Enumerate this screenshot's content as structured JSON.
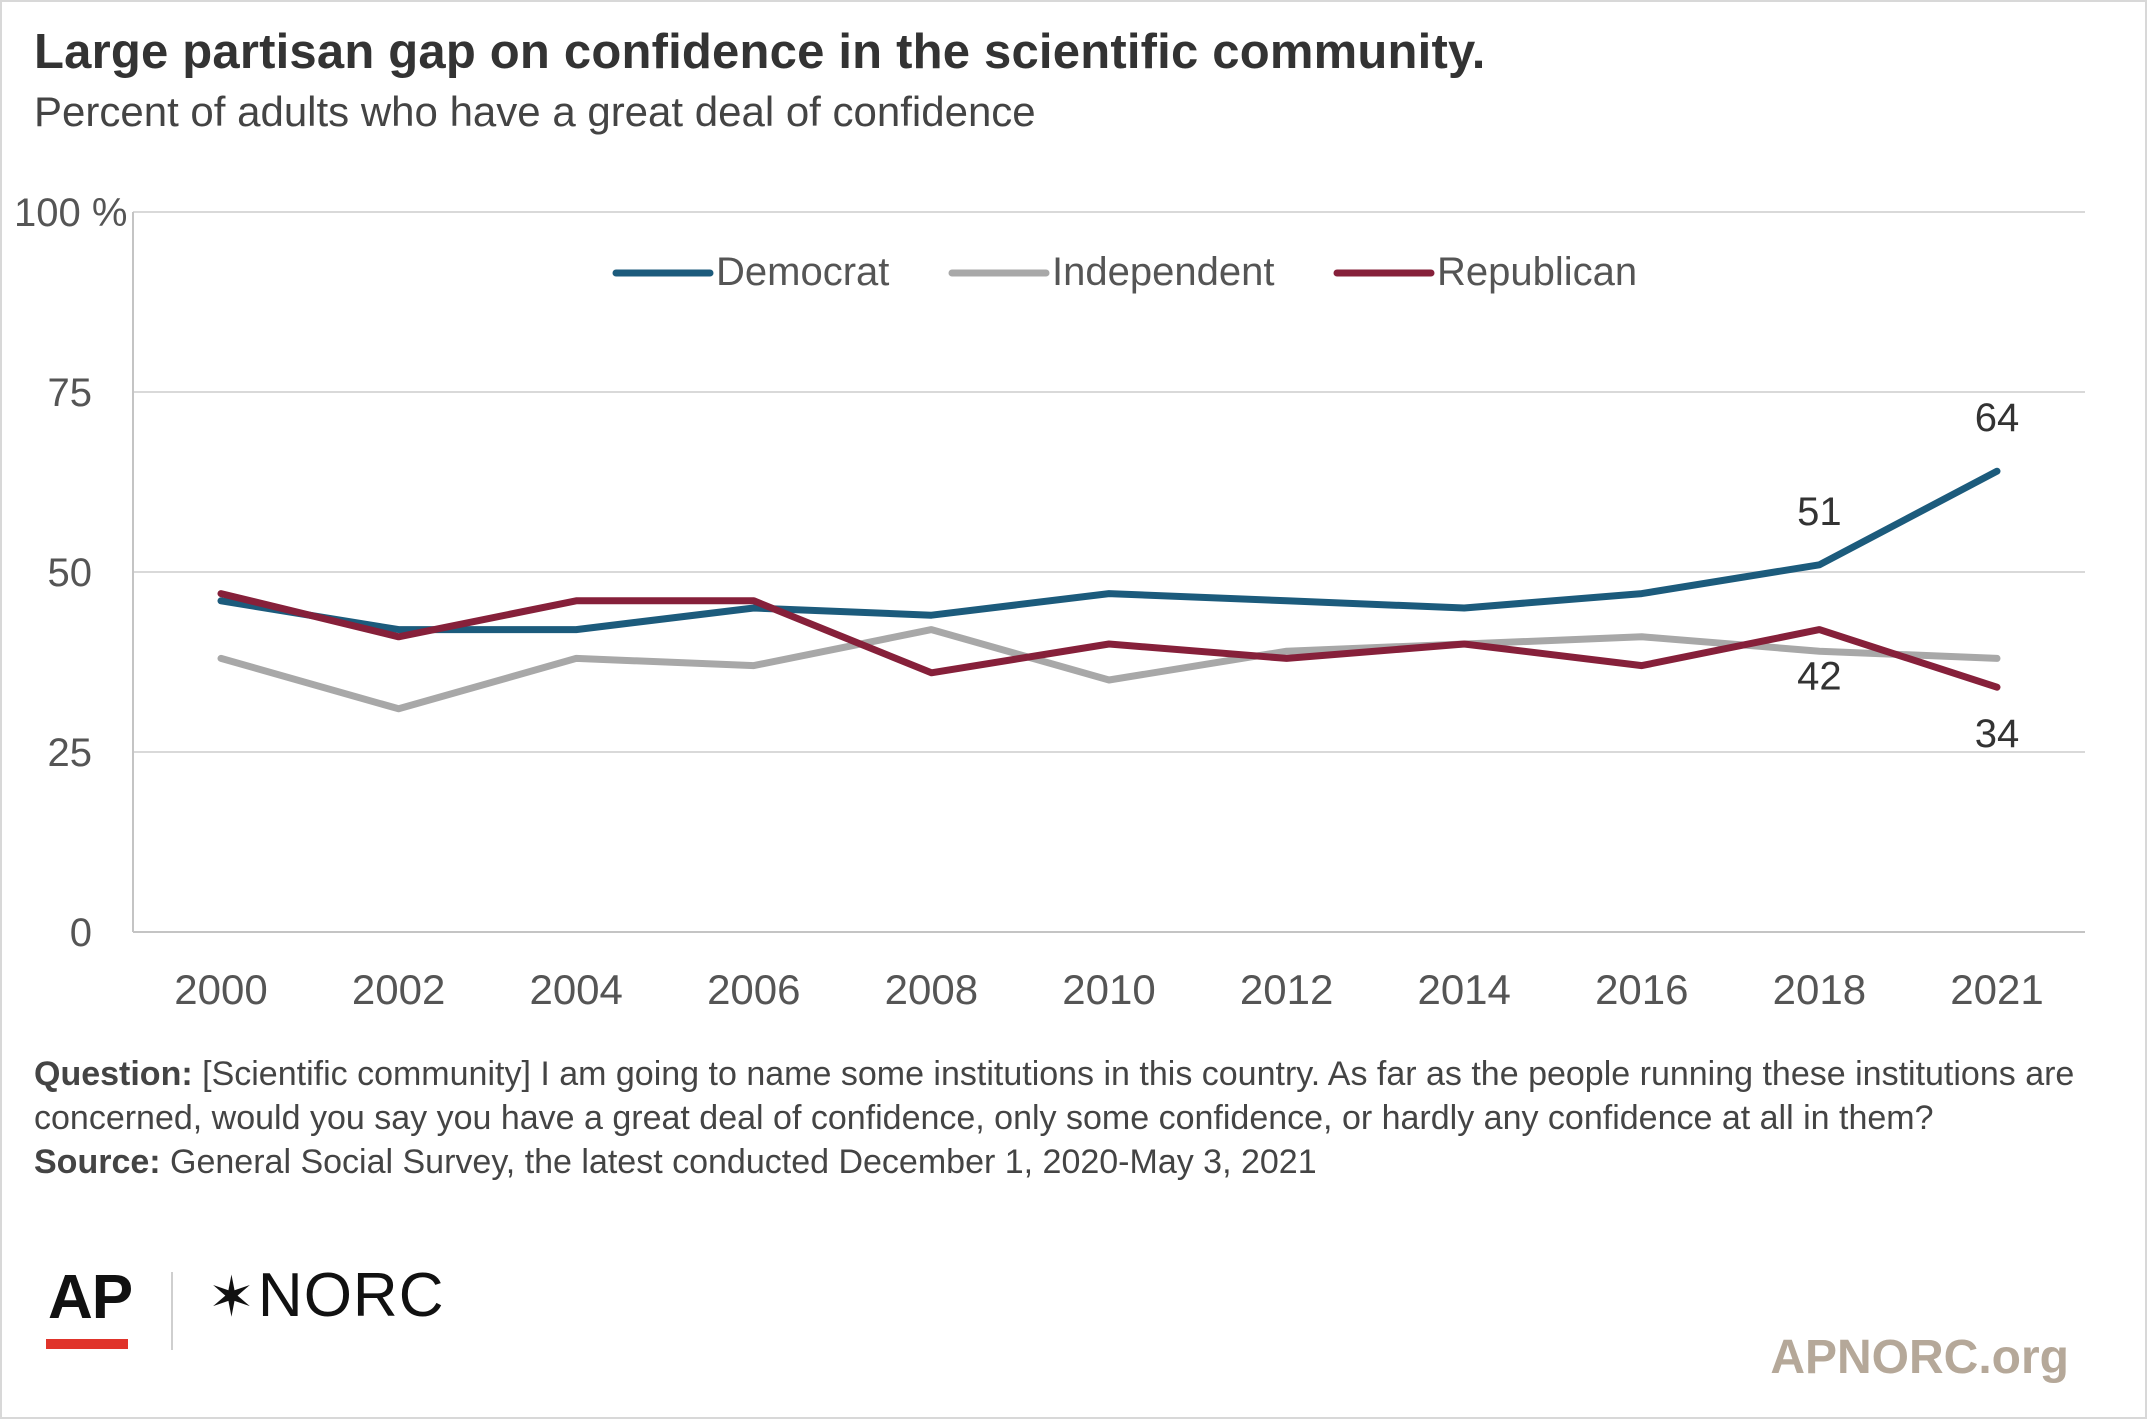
{
  "header": {
    "title": "Large partisan gap on confidence in the scientific community.",
    "subtitle": "Percent of adults who have a great deal of confidence"
  },
  "chart_data": {
    "type": "line",
    "x": [
      "2000",
      "2002",
      "2004",
      "2006",
      "2008",
      "2010",
      "2012",
      "2014",
      "2016",
      "2018",
      "2021"
    ],
    "ylim": [
      0,
      100
    ],
    "yticks": [
      0,
      25,
      50,
      75,
      100
    ],
    "ytick_labels": [
      "0",
      "25",
      "50",
      "75",
      "100 %"
    ],
    "grid": true,
    "legend_position": "top-center",
    "series": [
      {
        "name": "Democrat",
        "color": "#1c5b7c",
        "values": [
          46,
          42,
          42,
          45,
          44,
          47,
          46,
          45,
          47,
          51,
          64
        ]
      },
      {
        "name": "Independent",
        "color": "#a8a8a8",
        "values": [
          38,
          31,
          38,
          37,
          42,
          35,
          39,
          40,
          41,
          39,
          38
        ]
      },
      {
        "name": "Republican",
        "color": "#86203a",
        "values": [
          47,
          41,
          46,
          46,
          36,
          40,
          38,
          40,
          37,
          42,
          34
        ]
      }
    ],
    "data_labels": [
      {
        "series": "Democrat",
        "x": "2018",
        "value": 51,
        "text": "51",
        "placement": "above"
      },
      {
        "series": "Democrat",
        "x": "2021",
        "value": 64,
        "text": "64",
        "placement": "above"
      },
      {
        "series": "Republican",
        "x": "2018",
        "value": 42,
        "text": "42",
        "placement": "below"
      },
      {
        "series": "Republican",
        "x": "2021",
        "value": 34,
        "text": "34",
        "placement": "below"
      }
    ]
  },
  "footer": {
    "question_label": "Question:",
    "question_text": "[Scientific community] I am going to name some institutions in this country. As far as the people running these institutions are concerned, would you say you have a great deal of confidence, only some confidence, or hardly any confidence at all in them?",
    "source_label": "Source:",
    "source_text": "General Social Survey, the latest conducted December 1, 2020-May 3, 2021"
  },
  "branding": {
    "ap": "AP",
    "norc_star": "✶",
    "norc": "NORC",
    "site": "APNORC.org"
  }
}
